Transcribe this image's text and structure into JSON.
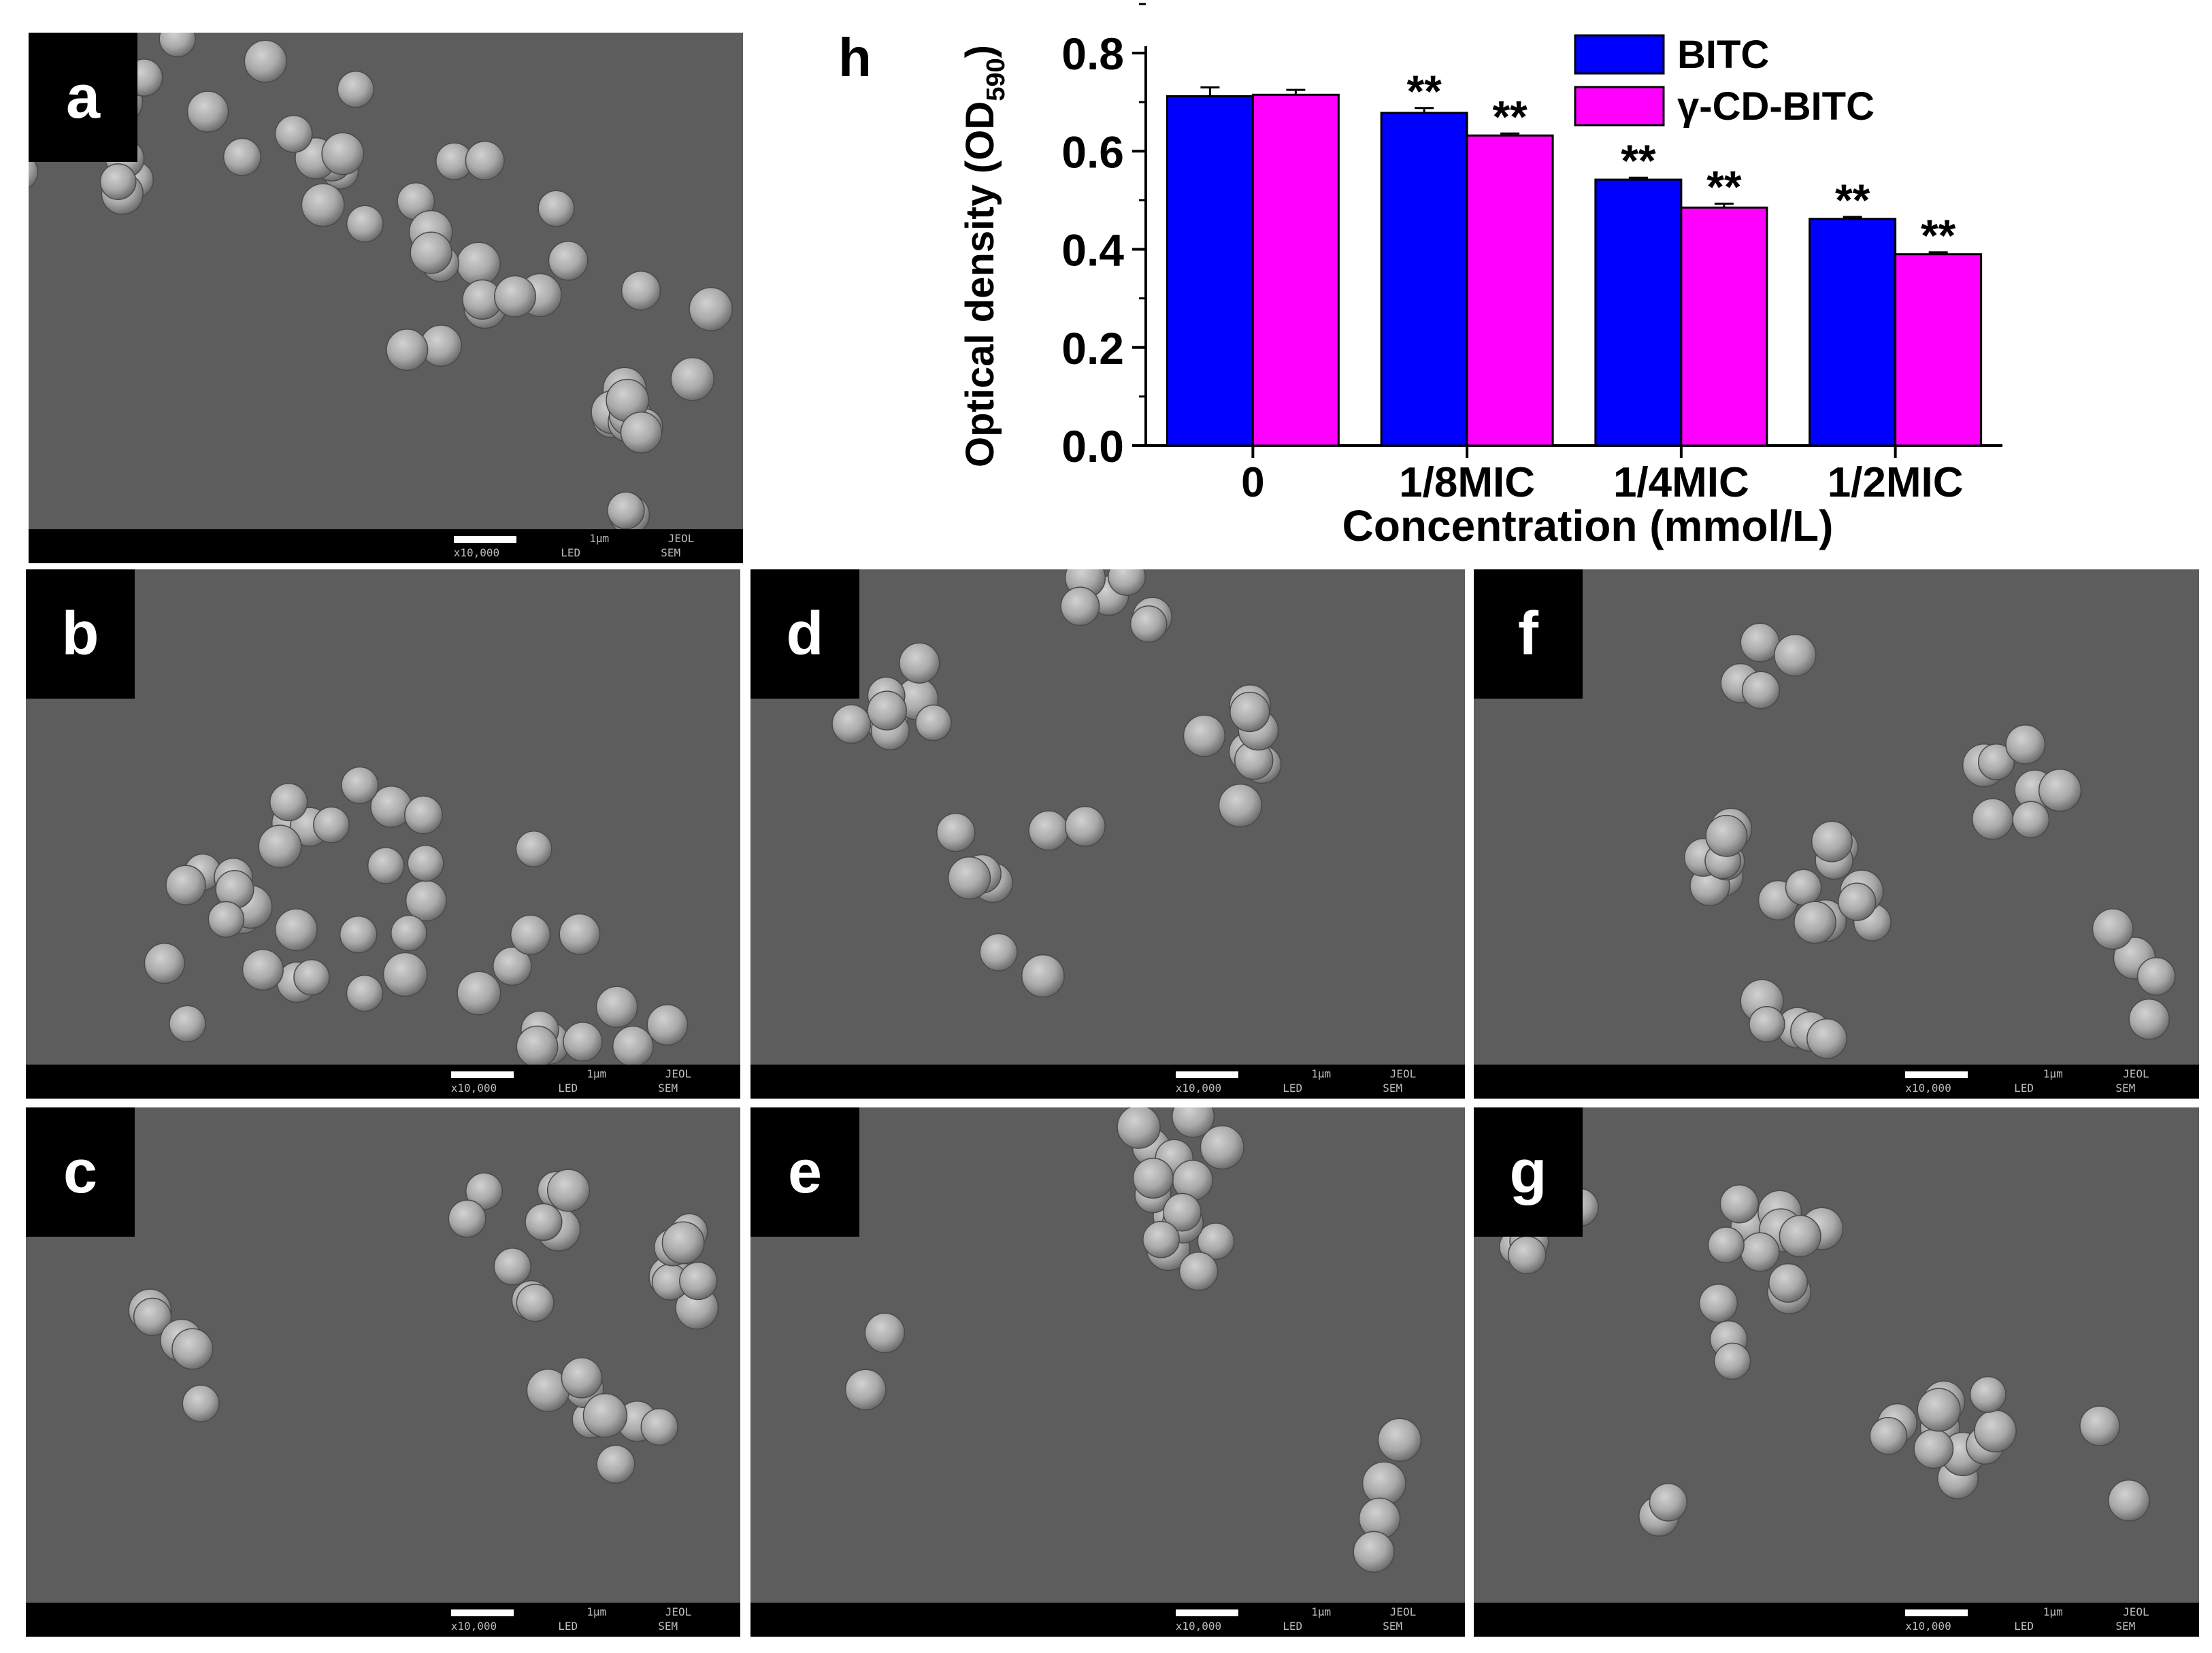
{
  "panels": [
    {
      "id": "a",
      "letter": "a",
      "scale": "1μm",
      "mag": "x10,000",
      "mode": "LED",
      "maker": "JEOL",
      "type": "SEM"
    },
    {
      "id": "b",
      "letter": "b",
      "scale": "1μm",
      "mag": "x10,000",
      "mode": "LED",
      "maker": "JEOL",
      "type": "SEM"
    },
    {
      "id": "c",
      "letter": "c",
      "scale": "1μm",
      "mag": "x10,000",
      "mode": "LED",
      "maker": "JEOL",
      "type": "SEM"
    },
    {
      "id": "d",
      "letter": "d",
      "scale": "1μm",
      "mag": "x10,000",
      "mode": "LED",
      "maker": "JEOL",
      "type": "SEM"
    },
    {
      "id": "e",
      "letter": "e",
      "scale": "1μm",
      "mag": "x10,000",
      "mode": "LED",
      "maker": "JEOL",
      "type": "SEM"
    },
    {
      "id": "f",
      "letter": "f",
      "scale": "1μm",
      "mag": "x10,000",
      "mode": "LED",
      "maker": "JEOL",
      "type": "SEM"
    },
    {
      "id": "g",
      "letter": "g",
      "scale": "1μm",
      "mag": "x10,000",
      "mode": "LED",
      "maker": "JEOL",
      "type": "SEM"
    }
  ],
  "chart_data": {
    "type": "bar",
    "panel_letter": "h",
    "categories": [
      "0",
      "1/8MIC",
      "1/4MIC",
      "1/2MIC"
    ],
    "series": [
      {
        "name": "BITC",
        "color": "#0000ff",
        "values": [
          0.712,
          0.678,
          0.542,
          0.462
        ],
        "errors": [
          0.018,
          0.01,
          0.004,
          0.004
        ],
        "marks": [
          "",
          "**",
          "**",
          "**"
        ]
      },
      {
        "name": "γ-CD-BITC",
        "color": "#ff00ff",
        "values": [
          0.715,
          0.632,
          0.485,
          0.39
        ],
        "errors": [
          0.01,
          0.004,
          0.008,
          0.004
        ],
        "marks": [
          "",
          "**",
          "**",
          "**"
        ]
      }
    ],
    "xlabel": "Concentration (mmol/L)",
    "ylabel": "Optical density (OD",
    "ylabel_sub": "590",
    "ylabel_end": ")",
    "ylim": [
      0,
      0.8
    ],
    "yticks": [
      "0.0",
      "0.2",
      "0.4",
      "0.6",
      "0.8"
    ],
    "legend_position": "top-right",
    "grid": false
  }
}
